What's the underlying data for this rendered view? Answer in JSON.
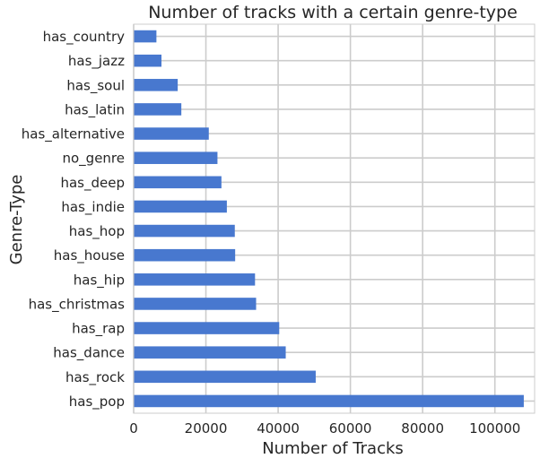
{
  "chart_data": {
    "type": "bar",
    "orientation": "horizontal",
    "title": "Number of tracks with a certain genre-type",
    "xlabel": "Number of Tracks",
    "ylabel": "Genre-Type",
    "categories": [
      "has_country",
      "has_jazz",
      "has_soul",
      "has_latin",
      "has_alternative",
      "no_genre",
      "has_deep",
      "has_indie",
      "has_hop",
      "has_house",
      "has_hip",
      "has_christmas",
      "has_rap",
      "has_dance",
      "has_rock",
      "has_pop"
    ],
    "values": [
      6300,
      7700,
      12200,
      13200,
      20800,
      23200,
      24300,
      25800,
      28000,
      28100,
      33600,
      33900,
      40300,
      42100,
      50400,
      108000
    ],
    "xlim": [
      0,
      111000
    ],
    "xticks": [
      0,
      20000,
      40000,
      60000,
      80000,
      100000
    ],
    "xtick_labels": [
      "0",
      "20000",
      "40000",
      "60000",
      "80000",
      "100000"
    ],
    "grid": true,
    "bar_color": "#4878cf",
    "grid_color": "#cccccc"
  }
}
